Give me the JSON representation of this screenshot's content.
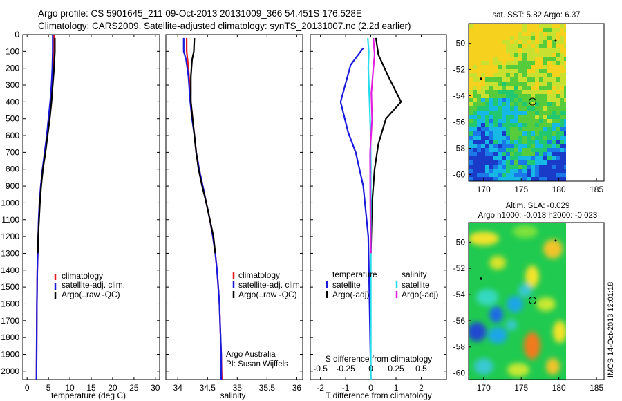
{
  "header": {
    "line1": "Argo profile: CS 5901645_211 09-Oct-2013 20131009_366 54.451S 176.528E",
    "line2": "Climatology: CARS2009. Satellite-adjusted climatology: synTS_20131007.nc (2.2d earlier)"
  },
  "imos_stamp": "IMOS 14-Oct-2013 12:01:18",
  "colors": {
    "climatology": "#e8191c",
    "satellite": "#1a1adc",
    "argo": "#000000",
    "cyan": "#23dcec",
    "magenta": "#e21ee0"
  },
  "chart_data": [
    {
      "type": "line",
      "id": "temperature",
      "xlabel": "temperature (deg C)",
      "xlim": [
        -1,
        31
      ],
      "xticks": [
        0,
        5,
        10,
        15,
        20,
        25,
        30
      ],
      "ylim": [
        0,
        2050
      ],
      "yticks": [
        0,
        100,
        200,
        300,
        400,
        500,
        600,
        700,
        800,
        900,
        1000,
        1100,
        1200,
        1300,
        1400,
        1500,
        1600,
        1700,
        1800,
        1900,
        2000
      ],
      "legend": [
        "climatology",
        "satellite-adj. clim.",
        "Argo(..raw -QC)"
      ],
      "series": [
        {
          "name": "climatology",
          "color": "#e8191c",
          "points": [
            [
              6.3,
              0
            ],
            [
              6.3,
              100
            ],
            [
              6.1,
              200
            ],
            [
              5.8,
              300
            ],
            [
              5.5,
              400
            ],
            [
              5.1,
              500
            ],
            [
              4.7,
              600
            ],
            [
              4.2,
              700
            ],
            [
              3.6,
              800
            ],
            [
              3.2,
              900
            ],
            [
              2.9,
              1000
            ],
            [
              2.75,
              1100
            ],
            [
              2.6,
              1200
            ],
            [
              2.5,
              1300
            ],
            [
              2.4,
              1400
            ],
            [
              2.35,
              1500
            ],
            [
              2.3,
              1600
            ],
            [
              2.25,
              1800
            ],
            [
              2.2,
              2050
            ]
          ]
        },
        {
          "name": "satellite-adj. clim.",
          "color": "#1a1adc",
          "points": [
            [
              6.0,
              0
            ],
            [
              6.0,
              100
            ],
            [
              5.9,
              200
            ],
            [
              5.7,
              300
            ],
            [
              5.4,
              400
            ],
            [
              5.0,
              500
            ],
            [
              4.6,
              600
            ],
            [
              4.1,
              700
            ],
            [
              3.6,
              800
            ],
            [
              3.2,
              900
            ],
            [
              2.9,
              1000
            ],
            [
              2.7,
              1100
            ],
            [
              2.6,
              1200
            ],
            [
              2.5,
              1300
            ],
            [
              2.4,
              1400
            ],
            [
              2.35,
              1500
            ],
            [
              2.3,
              1600
            ],
            [
              2.25,
              1800
            ],
            [
              2.2,
              2050
            ]
          ]
        },
        {
          "name": "Argo(..raw -QC)",
          "color": "#000000",
          "points": [
            [
              6.5,
              20
            ],
            [
              6.5,
              100
            ],
            [
              6.3,
              200
            ],
            [
              6.0,
              300
            ],
            [
              5.7,
              400
            ],
            [
              5.3,
              500
            ],
            [
              4.8,
              600
            ],
            [
              4.3,
              700
            ],
            [
              3.7,
              800
            ],
            [
              3.3,
              900
            ],
            [
              3.0,
              1000
            ],
            [
              2.8,
              1100
            ],
            [
              2.6,
              1200
            ],
            [
              2.5,
              1300
            ]
          ]
        }
      ]
    },
    {
      "type": "line",
      "id": "salinity",
      "xlabel": "salinity",
      "xlim": [
        33.8,
        36.1
      ],
      "xticks": [
        34,
        34.5,
        35,
        35.5,
        36
      ],
      "ylim": [
        0,
        2050
      ],
      "legend": [
        "climatology",
        "satellite-adj. clim.",
        "Argo(..raw -QC)"
      ],
      "annotations": [
        "Argo Australia",
        "PI: Susan Wijffels"
      ],
      "series": [
        {
          "name": "climatology",
          "color": "#e8191c",
          "points": [
            [
              34.15,
              20
            ],
            [
              34.15,
              100
            ],
            [
              34.18,
              200
            ],
            [
              34.2,
              300
            ],
            [
              34.22,
              400
            ],
            [
              34.25,
              500
            ],
            [
              34.28,
              600
            ],
            [
              34.31,
              700
            ],
            [
              34.36,
              800
            ],
            [
              34.42,
              900
            ],
            [
              34.48,
              1000
            ],
            [
              34.54,
              1100
            ],
            [
              34.59,
              1200
            ],
            [
              34.63,
              1300
            ],
            [
              34.66,
              1400
            ],
            [
              34.68,
              1500
            ],
            [
              34.7,
              1600
            ],
            [
              34.71,
              1700
            ],
            [
              34.72,
              1800
            ],
            [
              34.73,
              1900
            ],
            [
              34.74,
              2050
            ]
          ]
        },
        {
          "name": "satellite-adj. clim.",
          "color": "#1a1adc",
          "points": [
            [
              34.1,
              20
            ],
            [
              34.1,
              100
            ],
            [
              34.14,
              150
            ],
            [
              34.18,
              250
            ],
            [
              34.21,
              400
            ],
            [
              34.24,
              500
            ],
            [
              34.28,
              600
            ],
            [
              34.31,
              700
            ],
            [
              34.36,
              800
            ],
            [
              34.42,
              900
            ],
            [
              34.48,
              1000
            ],
            [
              34.54,
              1100
            ],
            [
              34.59,
              1200
            ],
            [
              34.63,
              1300
            ],
            [
              34.66,
              1400
            ],
            [
              34.68,
              1500
            ],
            [
              34.7,
              1600
            ],
            [
              34.71,
              1700
            ],
            [
              34.72,
              1800
            ],
            [
              34.73,
              1900
            ],
            [
              34.73,
              2050
            ]
          ]
        },
        {
          "name": "Argo(..raw -QC)",
          "color": "#000000",
          "points": [
            [
              34.28,
              20
            ],
            [
              34.27,
              100
            ],
            [
              34.24,
              150
            ],
            [
              34.22,
              250
            ],
            [
              34.22,
              400
            ],
            [
              34.25,
              500
            ],
            [
              34.28,
              600
            ],
            [
              34.31,
              700
            ],
            [
              34.35,
              800
            ],
            [
              34.41,
              900
            ],
            [
              34.48,
              1000
            ],
            [
              34.54,
              1100
            ],
            [
              34.6,
              1200
            ],
            [
              34.63,
              1300
            ]
          ]
        }
      ]
    },
    {
      "type": "line",
      "id": "differences",
      "xlabel": "T difference from climatology",
      "xlabel_top": "S difference from climatology",
      "xlim": [
        -2.4,
        3.0
      ],
      "xticks": [
        -2,
        -1,
        0,
        1,
        2
      ],
      "xticks_s_labels": [
        -0.5,
        -0.25,
        0,
        0.25,
        0.5
      ],
      "ylim": [
        0,
        2050
      ],
      "legend_titles": [
        "temperature",
        "salinity"
      ],
      "legend": [
        "satellite",
        "Argo(-adj)",
        "satellite",
        "Argo(-adj)"
      ],
      "series": [
        {
          "name": "satellite",
          "group": "temperature",
          "color": "#1a1adc",
          "points": [
            [
              -0.3,
              80
            ],
            [
              -0.8,
              180
            ],
            [
              -1.2,
              400
            ],
            [
              -0.9,
              580
            ],
            [
              -0.6,
              700
            ],
            [
              -0.3,
              900
            ],
            [
              -0.1,
              1200
            ],
            [
              -0.05,
              1600
            ],
            [
              0,
              2050
            ]
          ]
        },
        {
          "name": "Argo(-adj)",
          "group": "temperature",
          "color": "#000000",
          "points": [
            [
              0.2,
              20
            ],
            [
              0.3,
              120
            ],
            [
              0.7,
              250
            ],
            [
              1.2,
              400
            ],
            [
              0.6,
              500
            ],
            [
              0.3,
              650
            ],
            [
              0.15,
              800
            ],
            [
              0.05,
              1000
            ],
            [
              0,
              1300
            ]
          ]
        },
        {
          "name": "satellite",
          "group": "salinity",
          "color": "#23dcec",
          "points": [
            [
              -0.12,
              20
            ],
            [
              -0.08,
              100
            ],
            [
              -0.1,
              200
            ],
            [
              -0.05,
              400
            ],
            [
              -0.01,
              600
            ],
            [
              0,
              800
            ],
            [
              0,
              2050
            ]
          ]
        },
        {
          "name": "Argo(-adj)",
          "group": "salinity",
          "color": "#e21ee0",
          "points": [
            [
              0.1,
              20
            ],
            [
              0.15,
              120
            ],
            [
              0.1,
              200
            ],
            [
              0.02,
              350
            ],
            [
              0.05,
              500
            ],
            [
              -0.03,
              700
            ],
            [
              -0.02,
              1000
            ],
            [
              0,
              1300
            ]
          ]
        }
      ]
    },
    {
      "type": "heatmap",
      "id": "sst-map",
      "title": "sat. SST: 5.82  Argo: 6.37",
      "xlim": [
        168,
        186
      ],
      "xticks": [
        170,
        175,
        180,
        185
      ],
      "ylim": [
        -60.5,
        -48.5
      ],
      "yticks": [
        -50,
        -52,
        -54,
        -56,
        -58,
        -60
      ],
      "marker": {
        "lon": 176.5,
        "lat": -54.45
      }
    },
    {
      "type": "heatmap",
      "id": "sla-map",
      "title": "Altim. SLA: -0.029",
      "subtitle": "Argo h1000: -0.018  h2000: -0.023",
      "xlim": [
        168,
        186
      ],
      "xticks": [
        170,
        175,
        180,
        185
      ],
      "ylim": [
        -60.5,
        -48.5
      ],
      "yticks": [
        -50,
        -52,
        -54,
        -56,
        -58,
        -60
      ],
      "marker": {
        "lon": 176.5,
        "lat": -54.45
      }
    }
  ]
}
